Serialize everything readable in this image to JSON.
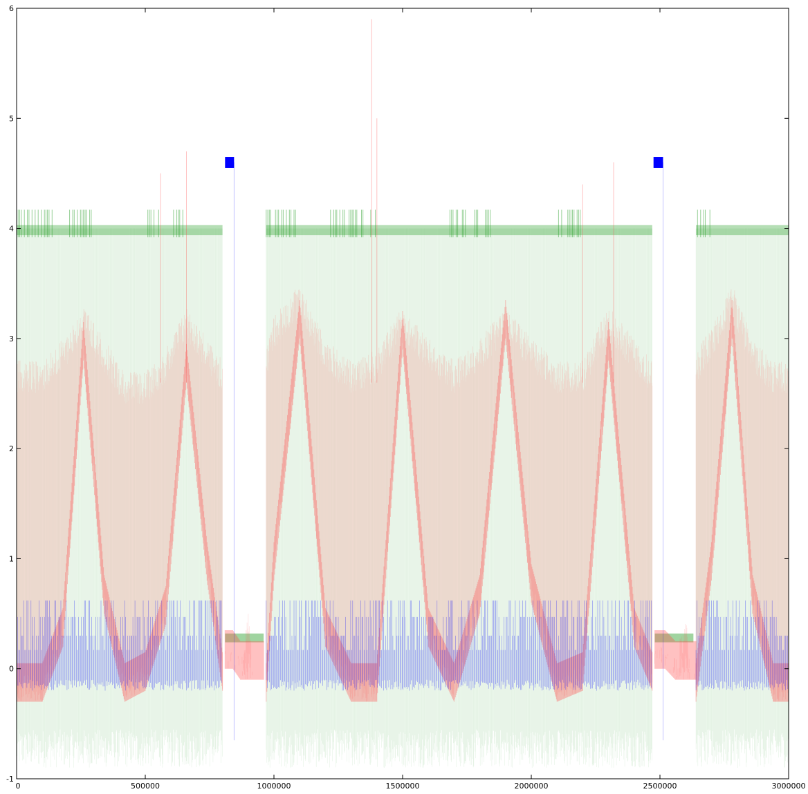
{
  "chart_data": {
    "type": "line",
    "title": "",
    "xlabel": "",
    "ylabel": "",
    "xlim": [
      0,
      3000000
    ],
    "ylim": [
      -1,
      6
    ],
    "x_ticks": [
      0,
      500000,
      1000000,
      1500000,
      2000000,
      2500000,
      3000000
    ],
    "x_tick_labels": [
      "0",
      "500000",
      "1000000",
      "1500000",
      "2000000",
      "2500000",
      "3000000"
    ],
    "y_ticks": [
      -1,
      0,
      1,
      2,
      3,
      4,
      5,
      6
    ],
    "y_tick_labels": [
      "-1",
      "0",
      "1",
      "2",
      "3",
      "4",
      "5",
      "6"
    ],
    "grid": false,
    "legend": "none",
    "series": [
      {
        "color": "#ff0000",
        "style": "dense oscillating trace, translucent",
        "segments": [
          {
            "x": [
              0,
              100000,
              180000,
              260000,
              340000,
              420000,
              500000,
              580000,
              660000,
              740000,
              800000
            ],
            "lower": [
              -0.3,
              -0.3,
              0.2,
              2.8,
              0.5,
              -0.3,
              -0.2,
              0.4,
              2.6,
              0.8,
              -0.2
            ],
            "upper": [
              2.8,
              2.8,
              3.0,
              3.3,
              3.0,
              2.7,
              2.7,
              2.9,
              3.3,
              3.0,
              2.8
            ]
          },
          {
            "x": [
              810000,
              840000,
              870000,
              900000,
              920000,
              940000,
              960000
            ],
            "lower": [
              0.0,
              0.0,
              -0.1,
              -0.1,
              -0.1,
              -0.1,
              -0.1
            ],
            "upper": [
              0.2,
              0.2,
              0.1,
              0.5,
              0.0,
              0.0,
              0.0
            ]
          },
          {
            "x": [
              970000,
              1000000,
              1100000,
              1200000,
              1300000,
              1400000,
              1500000,
              1600000,
              1700000,
              1800000,
              1900000,
              2000000,
              2100000,
              2200000,
              2300000,
              2400000,
              2470000
            ],
            "lower": [
              -0.3,
              0.8,
              3.0,
              0.2,
              -0.3,
              -0.3,
              2.9,
              0.2,
              -0.3,
              0.5,
              3.0,
              0.6,
              -0.3,
              -0.2,
              2.8,
              0.2,
              -0.2
            ],
            "upper": [
              2.9,
              3.2,
              3.5,
              3.0,
              2.8,
              2.9,
              3.3,
              3.0,
              2.8,
              3.0,
              3.3,
              3.0,
              2.8,
              2.8,
              3.3,
              3.0,
              2.8
            ]
          },
          {
            "x": [
              2480000,
              2520000,
              2560000,
              2600000,
              2620000,
              2640000
            ],
            "lower": [
              0.0,
              0.0,
              -0.1,
              -0.1,
              -0.1,
              -0.1
            ],
            "upper": [
              0.2,
              0.2,
              0.1,
              0.5,
              0.0,
              0.0
            ]
          },
          {
            "x": [
              2640000,
              2700000,
              2780000,
              2860000,
              2940000,
              3000000
            ],
            "lower": [
              -0.3,
              0.8,
              3.0,
              0.5,
              -0.3,
              -0.3
            ],
            "upper": [
              2.9,
              3.1,
              3.5,
              3.0,
              2.8,
              2.8
            ]
          }
        ],
        "spikes": [
          {
            "x": 560000,
            "y": 4.5
          },
          {
            "x": 660000,
            "y": 4.7
          },
          {
            "x": 1380000,
            "y": 5.9
          },
          {
            "x": 1400000,
            "y": 5.0
          },
          {
            "x": 2320000,
            "y": 4.6
          },
          {
            "x": 2200000,
            "y": 4.4
          }
        ]
      },
      {
        "color": "#008000",
        "style": "thin trace between -0.9 and 4.2, with band at 4",
        "segments": [
          {
            "x_start": 0,
            "x_end": 800000,
            "lower": -0.9,
            "upper": 4.0,
            "band": 4.0
          },
          {
            "x_start": 970000,
            "x_end": 2470000,
            "lower": -0.9,
            "upper": 4.0,
            "band": 4.0
          },
          {
            "x_start": 2640000,
            "x_end": 3000000,
            "lower": -0.9,
            "upper": 4.0,
            "band": 4.0
          }
        ],
        "low_bands": [
          {
            "x_start": 810000,
            "x_end": 960000,
            "y": 0.28
          },
          {
            "x_start": 2480000,
            "x_end": 2630000,
            "y": 0.28
          }
        ],
        "burst_ranges": [
          [
            0,
            150000
          ],
          [
            200000,
            300000
          ],
          [
            510000,
            560000
          ],
          [
            610000,
            650000
          ],
          [
            970000,
            1100000
          ],
          [
            1220000,
            1400000
          ],
          [
            1660000,
            1850000
          ],
          [
            2100000,
            2200000
          ],
          [
            2640000,
            2700000
          ]
        ]
      },
      {
        "color": "#0000ff",
        "style": "rectangular pulse train between -0.2 and 0.6",
        "segments": [
          {
            "x_start": 0,
            "x_end": 800000,
            "lower": -0.2,
            "upper": 0.62
          },
          {
            "x_start": 970000,
            "x_end": 2470000,
            "lower": -0.2,
            "upper": 0.62
          },
          {
            "x_start": 2640000,
            "x_end": 3000000,
            "lower": -0.2,
            "upper": 0.62
          }
        ],
        "markers": [
          {
            "x_start": 810000,
            "x_end": 845000,
            "y": 4.6
          },
          {
            "x_start": 2475000,
            "x_end": 2512000,
            "y": 4.6
          }
        ],
        "spike_lines": [
          {
            "x": 845000,
            "y_low": -0.65,
            "y_high": 4.6
          },
          {
            "x": 2512000,
            "y_low": -0.65,
            "y_high": 4.6
          }
        ]
      }
    ]
  }
}
